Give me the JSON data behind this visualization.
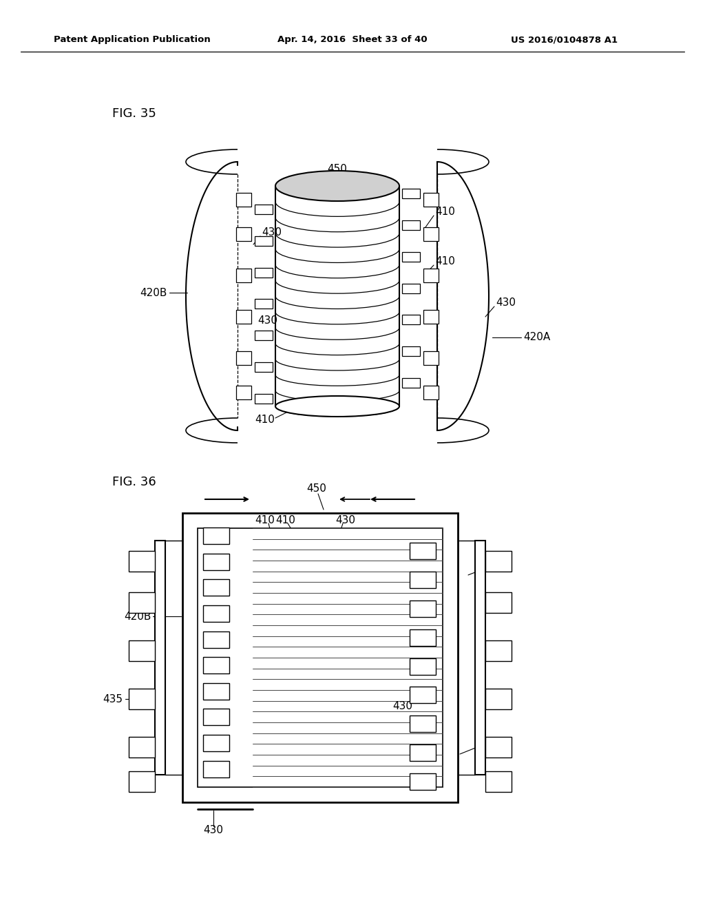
{
  "background_color": "#ffffff",
  "header_left": "Patent Application Publication",
  "header_center": "Apr. 14, 2016  Sheet 33 of 40",
  "header_right": "US 2016/0104878 A1",
  "fig35_label": "FIG. 35",
  "fig36_label": "FIG. 36"
}
